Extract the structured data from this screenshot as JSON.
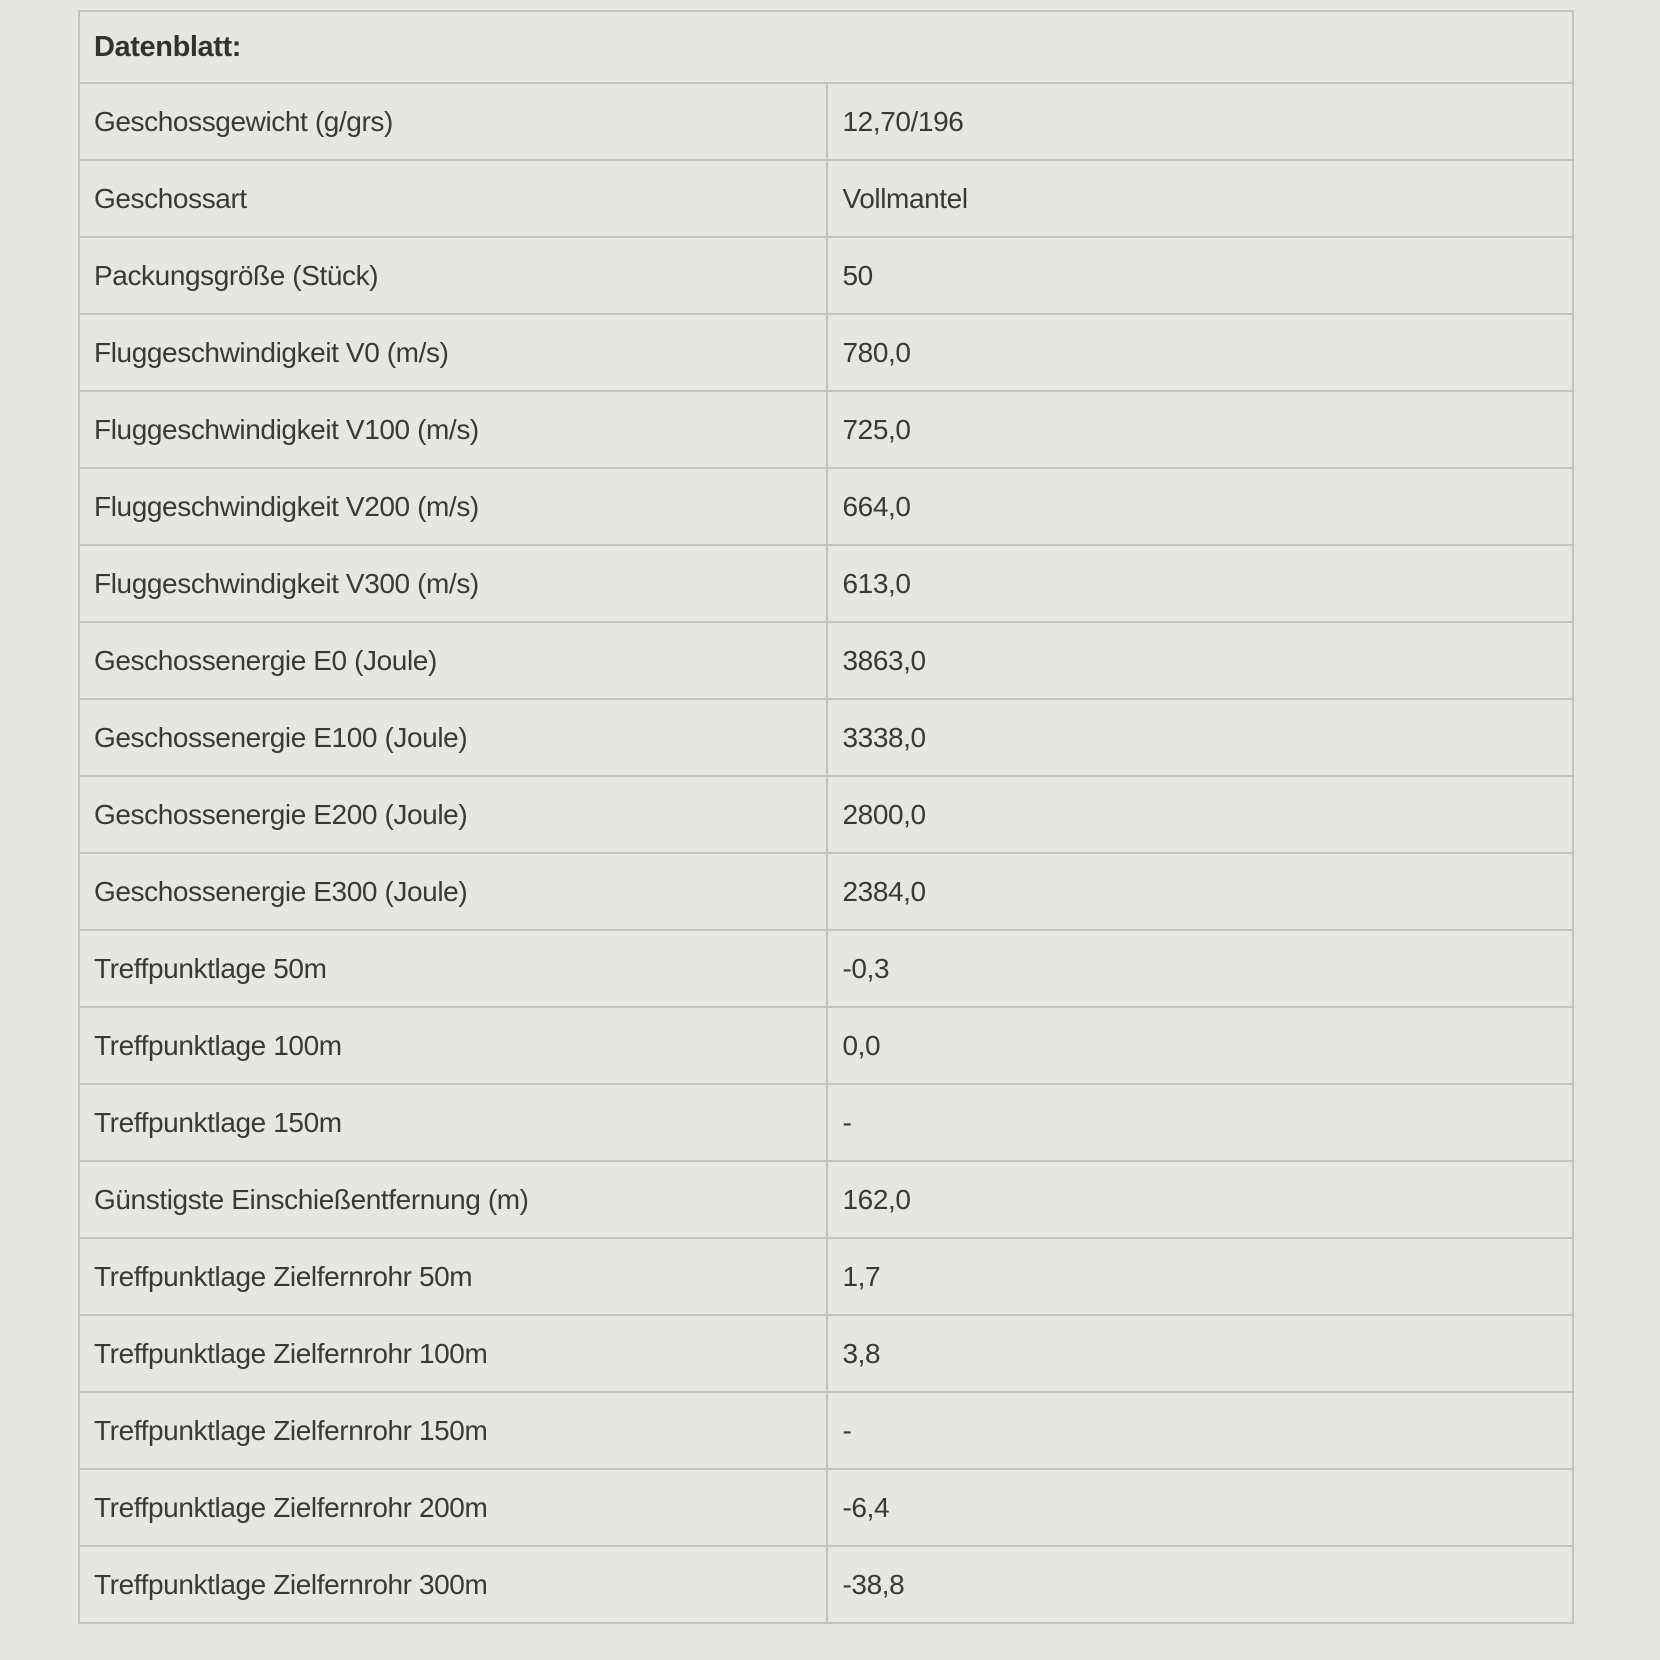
{
  "page": {
    "background_color": "#e6e6e4",
    "border_color": "#c3c3c1",
    "text_color": "#3a3a35"
  },
  "table": {
    "title": "Datenblatt:",
    "rows": [
      {
        "label": "Geschossgewicht (g/grs)",
        "value": "12,70/196"
      },
      {
        "label": "Geschossart",
        "value": "Vollmantel"
      },
      {
        "label": "Packungsgröße (Stück)",
        "value": "50"
      },
      {
        "label": "Fluggeschwindigkeit V0 (m/s)",
        "value": "780,0"
      },
      {
        "label": "Fluggeschwindigkeit V100 (m/s)",
        "value": "725,0"
      },
      {
        "label": "Fluggeschwindigkeit V200 (m/s)",
        "value": "664,0"
      },
      {
        "label": "Fluggeschwindigkeit V300 (m/s)",
        "value": "613,0"
      },
      {
        "label": "Geschossenergie E0 (Joule)",
        "value": "3863,0"
      },
      {
        "label": "Geschossenergie E100 (Joule)",
        "value": "3338,0"
      },
      {
        "label": "Geschossenergie E200 (Joule)",
        "value": "2800,0"
      },
      {
        "label": "Geschossenergie E300 (Joule)",
        "value": "2384,0"
      },
      {
        "label": "Treffpunktlage 50m",
        "value": "-0,3"
      },
      {
        "label": "Treffpunktlage 100m",
        "value": "0,0"
      },
      {
        "label": "Treffpunktlage 150m",
        "value": "-"
      },
      {
        "label": "Günstigste Einschießentfernung (m)",
        "value": "162,0"
      },
      {
        "label": "Treffpunktlage Zielfernrohr 50m",
        "value": "1,7"
      },
      {
        "label": "Treffpunktlage Zielfernrohr 100m",
        "value": "3,8"
      },
      {
        "label": "Treffpunktlage Zielfernrohr 150m",
        "value": "-"
      },
      {
        "label": "Treffpunktlage Zielfernrohr 200m",
        "value": "-6,4"
      },
      {
        "label": "Treffpunktlage Zielfernrohr 300m",
        "value": "-38,8"
      }
    ]
  }
}
